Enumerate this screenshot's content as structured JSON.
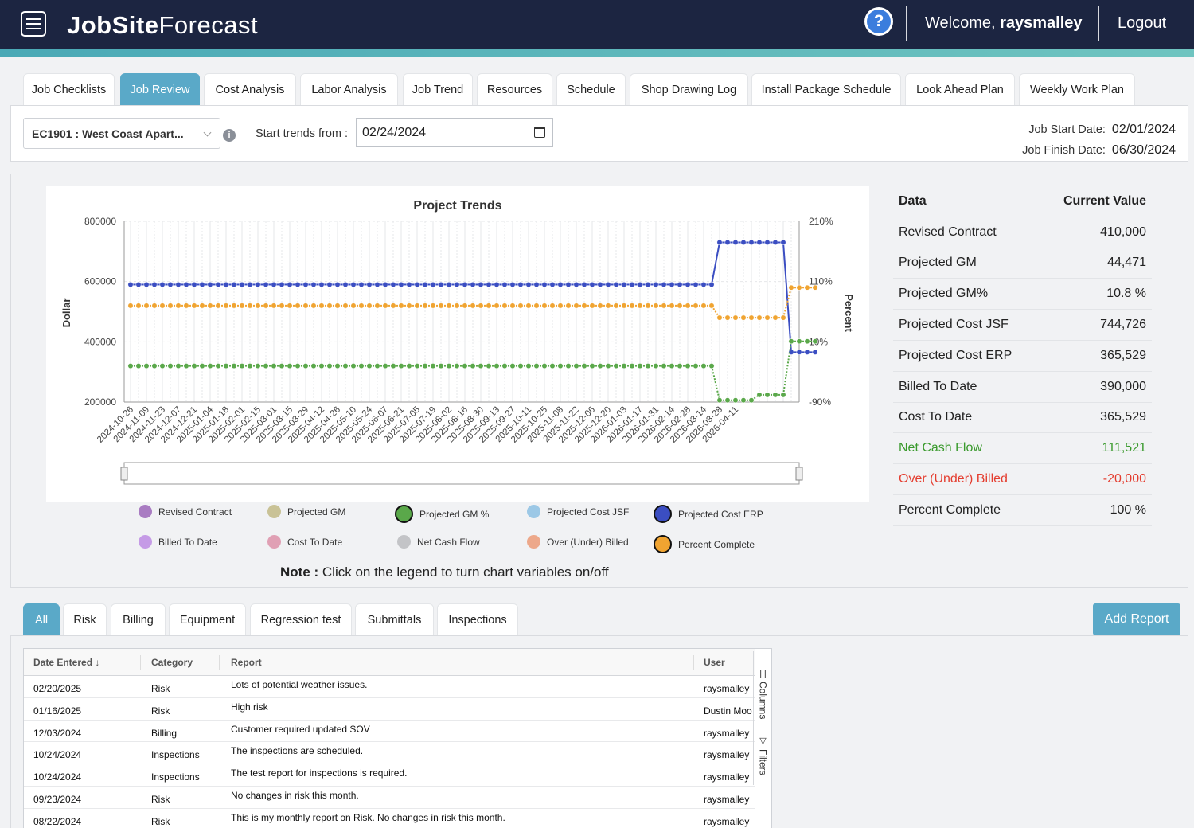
{
  "app": {
    "brand_bold": "JobSite",
    "brand_light": "Forecast",
    "welcome_prefix": "Welcome, ",
    "username": "raysmalley",
    "logout_label": "Logout"
  },
  "tabs": [
    {
      "label": "Job Checklists"
    },
    {
      "label": "Job Review",
      "active": true
    },
    {
      "label": "Cost Analysis"
    },
    {
      "label": "Labor Analysis"
    },
    {
      "label": "Job Trend"
    },
    {
      "label": "Resources"
    },
    {
      "label": "Schedule"
    },
    {
      "label": "Shop Drawing Log"
    },
    {
      "label": "Install Package Schedule"
    },
    {
      "label": "Look Ahead Plan"
    },
    {
      "label": "Weekly Work Plan"
    }
  ],
  "filters": {
    "job_selected": "EC1901 : West Coast Apart...",
    "trends_label": "Start trends from :",
    "trends_date": "02/24/2024",
    "job_start_label": "Job Start Date:",
    "job_start_value": "02/01/2024",
    "job_finish_label": "Job Finish Date:",
    "job_finish_value": "06/30/2024"
  },
  "chart_data": {
    "type": "line",
    "title": "Project Trends",
    "ylabel": "Dollar",
    "y2label": "Percent",
    "ylim": [
      100000,
      800000
    ],
    "yticks": [
      "800000",
      "600000",
      "400000",
      "200000"
    ],
    "y2ticks": [
      "210%",
      "110%",
      "10%",
      "-90%"
    ],
    "x_tick_labels": [
      "2024-10-26",
      "2024-11-09",
      "2024-11-23",
      "2024-12-07",
      "2024-12-21",
      "2025-01-04",
      "2025-01-18",
      "2025-02-01",
      "2025-02-15",
      "2025-03-01",
      "2025-03-15",
      "2025-03-29",
      "2025-04-12",
      "2025-04-26",
      "2025-05-10",
      "2025-05-24",
      "2025-06-07",
      "2025-06-21",
      "2025-07-05",
      "2025-07-19",
      "2025-08-02",
      "2025-08-16",
      "2025-08-30",
      "2025-09-13",
      "2025-09-27",
      "2025-10-11",
      "2025-10-25",
      "2025-11-08",
      "2025-11-22",
      "2025-12-06",
      "2025-12-20",
      "2026-01-03",
      "2026-01-17",
      "2026-01-31",
      "2026-02-14",
      "2026-02-28",
      "2026-03-14",
      "2026-03-28",
      "2026-04-11"
    ],
    "points_per_tick": 2,
    "grid": true,
    "series": [
      {
        "name": "Projected Cost ERP",
        "color": "#3b4ec2",
        "axis": "left",
        "dashed_tail": false,
        "segments": [
          {
            "to_index": 73,
            "value": 590000
          },
          {
            "to_index": 74,
            "value": 730000
          },
          {
            "to_index": 82,
            "value": 730000
          },
          {
            "to_index": 83,
            "value": 365529
          },
          {
            "to_index": 86,
            "value": 365529
          }
        ]
      },
      {
        "name": "Percent Complete",
        "color": "#f0a431",
        "axis": "right",
        "dashed_tail": true,
        "segments": [
          {
            "to_index": 73,
            "value": 70
          },
          {
            "to_index": 74,
            "value": 50
          },
          {
            "to_index": 82,
            "value": 50
          },
          {
            "to_index": 83,
            "value": 100
          },
          {
            "to_index": 86,
            "value": 100
          }
        ]
      },
      {
        "name": "Projected GM %",
        "color": "#5aa84a",
        "axis": "right",
        "dashed_tail": true,
        "segments": [
          {
            "to_index": 73,
            "value": -30
          },
          {
            "to_index": 74,
            "value": -87
          },
          {
            "to_index": 78,
            "value": -87
          },
          {
            "to_index": 79,
            "value": -78
          },
          {
            "to_index": 82,
            "value": -78
          },
          {
            "to_index": 83,
            "value": 10.8
          },
          {
            "to_index": 86,
            "value": 10.8
          }
        ]
      }
    ]
  },
  "legend": [
    {
      "label": "Revised Contract",
      "color": "#a97cc2",
      "on": false
    },
    {
      "label": "Projected GM",
      "color": "#c9c296",
      "on": false
    },
    {
      "label": "Projected GM %",
      "color": "#5aa84a",
      "on": true
    },
    {
      "label": "Projected Cost JSF",
      "color": "#9cc8e6",
      "on": false
    },
    {
      "label": "Projected Cost ERP",
      "color": "#3b4ec2",
      "on": true
    },
    {
      "label": "Billed To Date",
      "color": "#c59be6",
      "on": false
    },
    {
      "label": "Cost To Date",
      "color": "#e0a0b4",
      "on": false
    },
    {
      "label": "Net Cash Flow",
      "color": "#c3c4c7",
      "on": false
    },
    {
      "label": "Over (Under) Billed",
      "color": "#eda88a",
      "on": false
    },
    {
      "label": "Percent Complete",
      "color": "#f0a431",
      "on": true
    }
  ],
  "note": {
    "prefix": "Note :",
    "text": " Click on the legend to turn chart variables on/off"
  },
  "data_table": {
    "header_label": "Data",
    "header_value": "Current Value",
    "rows": [
      {
        "label": "Revised Contract",
        "value": "410,000",
        "tone": ""
      },
      {
        "label": "Projected GM",
        "value": "44,471",
        "tone": ""
      },
      {
        "label": "Projected GM%",
        "value": "10.8 %",
        "tone": ""
      },
      {
        "label": "Projected Cost JSF",
        "value": "744,726",
        "tone": ""
      },
      {
        "label": "Projected Cost ERP",
        "value": "365,529",
        "tone": ""
      },
      {
        "label": "Billed To Date",
        "value": "390,000",
        "tone": ""
      },
      {
        "label": "Cost To Date",
        "value": "365,529",
        "tone": ""
      },
      {
        "label": "Net Cash Flow",
        "value": "111,521",
        "tone": "green"
      },
      {
        "label": "Over (Under) Billed",
        "value": "-20,000",
        "tone": "red"
      },
      {
        "label": "Percent Complete",
        "value": "100 %",
        "tone": ""
      }
    ]
  },
  "report_tabs": [
    {
      "label": "All",
      "active": true
    },
    {
      "label": "Risk"
    },
    {
      "label": "Billing"
    },
    {
      "label": "Equipment"
    },
    {
      "label": "Regression test"
    },
    {
      "label": "Submittals"
    },
    {
      "label": "Inspections"
    }
  ],
  "add_report_label": "Add Report",
  "grid": {
    "columns": [
      "Date Entered",
      "Category",
      "Report",
      "User"
    ],
    "sort_icon": "arrow-down-icon",
    "side_columns_label": "Columns",
    "side_filters_label": "Filters",
    "rows": [
      {
        "date": "02/20/2025",
        "category": "Risk",
        "report": "Lots of potential weather issues.",
        "user": "raysmalley"
      },
      {
        "date": "01/16/2025",
        "category": "Risk",
        "report": "High risk",
        "user": "Dustin Moo"
      },
      {
        "date": "12/03/2024",
        "category": "Billing",
        "report": "Customer required updated SOV",
        "user": "raysmalley"
      },
      {
        "date": "10/24/2024",
        "category": "Inspections",
        "report": "The inspections are scheduled.",
        "user": "raysmalley"
      },
      {
        "date": "10/24/2024",
        "category": "Inspections",
        "report": "The test report for inspections is required.",
        "user": "raysmalley"
      },
      {
        "date": "09/23/2024",
        "category": "Risk",
        "report": "No changes in risk this month.",
        "user": "raysmalley"
      },
      {
        "date": "08/22/2024",
        "category": "Risk",
        "report": "This is my monthly report on Risk. No changes in risk this month.",
        "user": "raysmalley"
      }
    ]
  }
}
